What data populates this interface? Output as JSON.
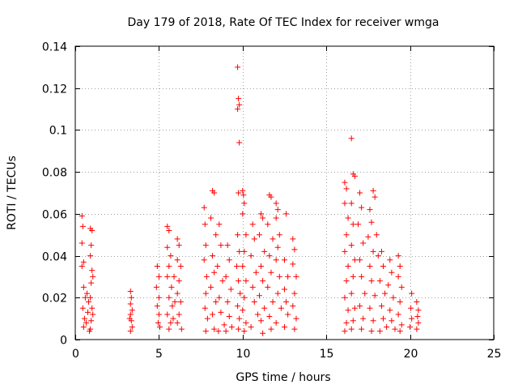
{
  "chart_data": {
    "type": "scatter",
    "title": "Day 179 of 2018, Rate Of TEC Index for receiver wmga",
    "xlabel": "GPS time / hours",
    "ylabel": "ROTI / TECUs",
    "xlim": [
      0,
      25
    ],
    "ylim": [
      0,
      0.14
    ],
    "xticks": [
      0,
      5,
      10,
      15,
      20,
      25
    ],
    "xtick_labels": [
      "0",
      "5",
      "10",
      "15",
      "20",
      "25"
    ],
    "yticks": [
      0,
      0.02,
      0.04,
      0.06,
      0.08,
      0.1,
      0.12,
      0.14
    ],
    "ytick_labels": [
      "0",
      "0.02",
      "0.04",
      "0.06",
      "0.08",
      "0.1",
      "0.12",
      "0.14"
    ],
    "grid": true,
    "marker": "+",
    "marker_color": "#ff0000",
    "series": [
      {
        "name": "ROTI",
        "color": "#ff0000",
        "points": [
          [
            0.4,
            0.059
          ],
          [
            0.45,
            0.054
          ],
          [
            0.4,
            0.046
          ],
          [
            0.5,
            0.037
          ],
          [
            0.4,
            0.035
          ],
          [
            0.5,
            0.025
          ],
          [
            0.6,
            0.02
          ],
          [
            0.45,
            0.015
          ],
          [
            0.55,
            0.01
          ],
          [
            0.5,
            0.006
          ],
          [
            0.7,
            0.022
          ],
          [
            0.75,
            0.013
          ],
          [
            0.65,
            0.008
          ],
          [
            0.8,
            0.018
          ],
          [
            0.85,
            0.004
          ],
          [
            0.9,
            0.053
          ],
          [
            1.0,
            0.052
          ],
          [
            0.95,
            0.045
          ],
          [
            0.9,
            0.04
          ],
          [
            1.0,
            0.033
          ],
          [
            0.95,
            0.027
          ],
          [
            0.9,
            0.02
          ],
          [
            1.0,
            0.015
          ],
          [
            0.95,
            0.009
          ],
          [
            0.9,
            0.005
          ],
          [
            1.05,
            0.03
          ],
          [
            1.05,
            0.012
          ],
          [
            3.3,
            0.023
          ],
          [
            3.35,
            0.02
          ],
          [
            3.3,
            0.017
          ],
          [
            3.4,
            0.014
          ],
          [
            3.3,
            0.012
          ],
          [
            3.35,
            0.009
          ],
          [
            3.4,
            0.006
          ],
          [
            3.3,
            0.004
          ],
          [
            3.25,
            0.01
          ],
          [
            4.9,
            0.035
          ],
          [
            5.0,
            0.03
          ],
          [
            4.85,
            0.025
          ],
          [
            5.0,
            0.02
          ],
          [
            4.9,
            0.016
          ],
          [
            5.0,
            0.012
          ],
          [
            4.95,
            0.008
          ],
          [
            5.05,
            0.006
          ],
          [
            5.5,
            0.054
          ],
          [
            5.6,
            0.052
          ],
          [
            5.5,
            0.044
          ],
          [
            5.7,
            0.04
          ],
          [
            5.6,
            0.035
          ],
          [
            5.5,
            0.03
          ],
          [
            5.75,
            0.025
          ],
          [
            5.6,
            0.02
          ],
          [
            5.8,
            0.016
          ],
          [
            5.5,
            0.012
          ],
          [
            5.7,
            0.008
          ],
          [
            5.6,
            0.005
          ],
          [
            5.9,
            0.03
          ],
          [
            5.95,
            0.018
          ],
          [
            5.85,
            0.01
          ],
          [
            6.1,
            0.048
          ],
          [
            6.2,
            0.045
          ],
          [
            6.1,
            0.038
          ],
          [
            6.3,
            0.035
          ],
          [
            6.2,
            0.028
          ],
          [
            6.1,
            0.022
          ],
          [
            6.3,
            0.018
          ],
          [
            6.2,
            0.012
          ],
          [
            6.1,
            0.008
          ],
          [
            6.35,
            0.005
          ],
          [
            7.7,
            0.063
          ],
          [
            7.75,
            0.055
          ],
          [
            7.8,
            0.045
          ],
          [
            7.7,
            0.038
          ],
          [
            7.85,
            0.03
          ],
          [
            7.8,
            0.022
          ],
          [
            7.75,
            0.015
          ],
          [
            7.9,
            0.01
          ],
          [
            7.8,
            0.004
          ],
          [
            8.2,
            0.071
          ],
          [
            8.3,
            0.07
          ],
          [
            8.1,
            0.058
          ],
          [
            8.4,
            0.05
          ],
          [
            8.2,
            0.04
          ],
          [
            8.3,
            0.032
          ],
          [
            8.1,
            0.025
          ],
          [
            8.4,
            0.018
          ],
          [
            8.2,
            0.012
          ],
          [
            8.3,
            0.005
          ],
          [
            8.6,
            0.055
          ],
          [
            8.7,
            0.045
          ],
          [
            8.5,
            0.035
          ],
          [
            8.8,
            0.028
          ],
          [
            8.6,
            0.02
          ],
          [
            8.7,
            0.013
          ],
          [
            8.9,
            0.007
          ],
          [
            8.55,
            0.004
          ],
          [
            9.1,
            0.045
          ],
          [
            9.2,
            0.038
          ],
          [
            9.0,
            0.03
          ],
          [
            9.3,
            0.024
          ],
          [
            9.1,
            0.018
          ],
          [
            9.2,
            0.011
          ],
          [
            9.35,
            0.006
          ],
          [
            9.0,
            0.004
          ],
          [
            9.7,
            0.13
          ],
          [
            9.75,
            0.115
          ],
          [
            9.8,
            0.112
          ],
          [
            9.7,
            0.11
          ],
          [
            9.8,
            0.094
          ],
          [
            9.75,
            0.07
          ],
          [
            9.7,
            0.05
          ],
          [
            9.8,
            0.042
          ],
          [
            9.65,
            0.035
          ],
          [
            9.75,
            0.028
          ],
          [
            9.85,
            0.022
          ],
          [
            9.7,
            0.016
          ],
          [
            9.8,
            0.01
          ],
          [
            9.75,
            0.005
          ],
          [
            10.0,
            0.071
          ],
          [
            10.05,
            0.069
          ],
          [
            10.1,
            0.065
          ],
          [
            10.0,
            0.06
          ],
          [
            10.2,
            0.05
          ],
          [
            10.1,
            0.042
          ],
          [
            10.0,
            0.035
          ],
          [
            10.2,
            0.028
          ],
          [
            10.1,
            0.02
          ],
          [
            10.0,
            0.014
          ],
          [
            10.2,
            0.008
          ],
          [
            10.1,
            0.004
          ],
          [
            10.6,
            0.055
          ],
          [
            10.7,
            0.048
          ],
          [
            10.5,
            0.04
          ],
          [
            10.8,
            0.032
          ],
          [
            10.6,
            0.025
          ],
          [
            10.7,
            0.018
          ],
          [
            10.9,
            0.012
          ],
          [
            10.5,
            0.006
          ],
          [
            11.1,
            0.06
          ],
          [
            11.2,
            0.058
          ],
          [
            11.0,
            0.05
          ],
          [
            11.3,
            0.042
          ],
          [
            11.1,
            0.035
          ],
          [
            11.2,
            0.028
          ],
          [
            11.0,
            0.021
          ],
          [
            11.3,
            0.015
          ],
          [
            11.1,
            0.009
          ],
          [
            11.2,
            0.003
          ],
          [
            11.6,
            0.069
          ],
          [
            11.7,
            0.068
          ],
          [
            11.5,
            0.055
          ],
          [
            11.8,
            0.048
          ],
          [
            11.6,
            0.04
          ],
          [
            11.7,
            0.032
          ],
          [
            11.5,
            0.025
          ],
          [
            11.8,
            0.018
          ],
          [
            11.6,
            0.011
          ],
          [
            11.7,
            0.005
          ],
          [
            12.0,
            0.065
          ],
          [
            12.1,
            0.062
          ],
          [
            12.0,
            0.058
          ],
          [
            12.2,
            0.05
          ],
          [
            12.1,
            0.044
          ],
          [
            12.0,
            0.038
          ],
          [
            12.2,
            0.03
          ],
          [
            12.1,
            0.022
          ],
          [
            12.3,
            0.015
          ],
          [
            12.0,
            0.008
          ],
          [
            12.6,
            0.06
          ],
          [
            12.5,
            0.038
          ],
          [
            12.7,
            0.03
          ],
          [
            12.5,
            0.024
          ],
          [
            12.6,
            0.018
          ],
          [
            12.7,
            0.012
          ],
          [
            12.5,
            0.006
          ],
          [
            13.0,
            0.048
          ],
          [
            13.1,
            0.043
          ],
          [
            13.0,
            0.036
          ],
          [
            13.2,
            0.03
          ],
          [
            13.1,
            0.022
          ],
          [
            13.0,
            0.016
          ],
          [
            13.2,
            0.01
          ],
          [
            13.1,
            0.005
          ],
          [
            16.1,
            0.075
          ],
          [
            16.2,
            0.072
          ],
          [
            16.1,
            0.065
          ],
          [
            16.3,
            0.058
          ],
          [
            16.2,
            0.05
          ],
          [
            16.1,
            0.042
          ],
          [
            16.3,
            0.035
          ],
          [
            16.2,
            0.028
          ],
          [
            16.1,
            0.02
          ],
          [
            16.3,
            0.014
          ],
          [
            16.2,
            0.008
          ],
          [
            16.1,
            0.004
          ],
          [
            16.5,
            0.096
          ],
          [
            16.6,
            0.079
          ],
          [
            16.7,
            0.078
          ],
          [
            16.5,
            0.065
          ],
          [
            16.6,
            0.055
          ],
          [
            16.5,
            0.045
          ],
          [
            16.7,
            0.038
          ],
          [
            16.6,
            0.03
          ],
          [
            16.5,
            0.022
          ],
          [
            16.7,
            0.015
          ],
          [
            16.6,
            0.009
          ],
          [
            16.5,
            0.005
          ],
          [
            17.0,
            0.07
          ],
          [
            17.1,
            0.063
          ],
          [
            16.9,
            0.055
          ],
          [
            17.2,
            0.046
          ],
          [
            17.0,
            0.038
          ],
          [
            17.1,
            0.03
          ],
          [
            17.3,
            0.022
          ],
          [
            17.0,
            0.016
          ],
          [
            17.2,
            0.01
          ],
          [
            17.1,
            0.005
          ],
          [
            17.6,
            0.062
          ],
          [
            17.7,
            0.056
          ],
          [
            17.5,
            0.049
          ],
          [
            17.8,
            0.042
          ],
          [
            17.6,
            0.035
          ],
          [
            17.7,
            0.028
          ],
          [
            17.9,
            0.021
          ],
          [
            17.6,
            0.015
          ],
          [
            17.8,
            0.009
          ],
          [
            17.7,
            0.004
          ],
          [
            17.8,
            0.071
          ],
          [
            17.9,
            0.068
          ],
          [
            18.0,
            0.05
          ],
          [
            18.1,
            0.04
          ],
          [
            18.3,
            0.042
          ],
          [
            18.4,
            0.035
          ],
          [
            18.2,
            0.028
          ],
          [
            18.5,
            0.022
          ],
          [
            18.3,
            0.016
          ],
          [
            18.4,
            0.01
          ],
          [
            18.6,
            0.006
          ],
          [
            18.2,
            0.004
          ],
          [
            18.8,
            0.038
          ],
          [
            18.9,
            0.032
          ],
          [
            18.7,
            0.026
          ],
          [
            19.0,
            0.02
          ],
          [
            18.8,
            0.014
          ],
          [
            18.9,
            0.009
          ],
          [
            19.1,
            0.005
          ],
          [
            19.3,
            0.04
          ],
          [
            19.4,
            0.035
          ],
          [
            19.3,
            0.03
          ],
          [
            19.5,
            0.025
          ],
          [
            19.4,
            0.018
          ],
          [
            19.3,
            0.012
          ],
          [
            19.5,
            0.007
          ],
          [
            19.4,
            0.004
          ],
          [
            20.1,
            0.022
          ],
          [
            20.05,
            0.015
          ],
          [
            20.1,
            0.01
          ],
          [
            20.0,
            0.006
          ],
          [
            20.4,
            0.018
          ],
          [
            20.5,
            0.014
          ],
          [
            20.45,
            0.011
          ],
          [
            20.5,
            0.008
          ],
          [
            20.4,
            0.005
          ]
        ]
      }
    ]
  }
}
